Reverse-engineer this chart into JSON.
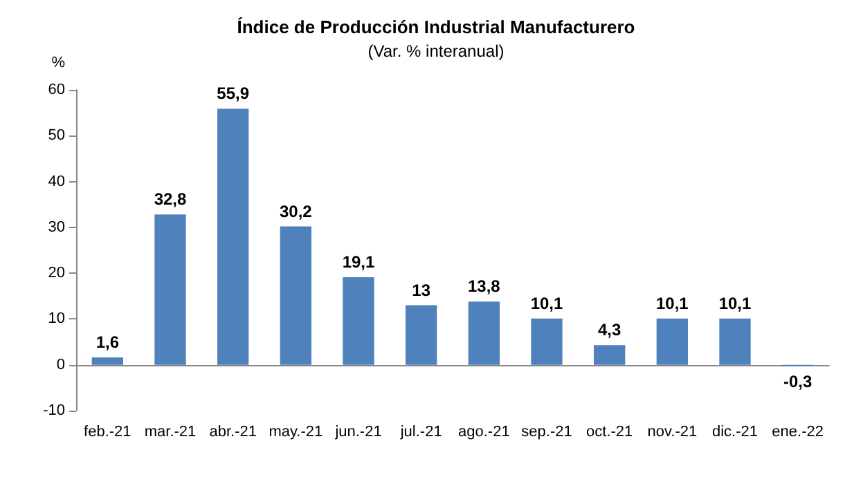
{
  "chart_data": {
    "type": "bar",
    "title": "Índice de Producción Industrial Manufacturero",
    "subtitle": "(Var. % interanual)",
    "ylabel": "%",
    "categories": [
      "feb.-21",
      "mar.-21",
      "abr.-21",
      "may.-21",
      "jun.-21",
      "jul.-21",
      "ago.-21",
      "sep.-21",
      "oct.-21",
      "nov.-21",
      "dic.-21",
      "ene.-22"
    ],
    "values": [
      1.6,
      32.8,
      55.9,
      30.2,
      19.1,
      13,
      13.8,
      10.1,
      4.3,
      10.1,
      10.1,
      -0.3
    ],
    "value_labels": [
      "1,6",
      "32,8",
      "55,9",
      "30,2",
      "19,1",
      "13",
      "13,8",
      "10,1",
      "4,3",
      "10,1",
      "10,1",
      "-0,3"
    ],
    "color": "#4f81bd",
    "ylim": [
      -10,
      60
    ],
    "yticks": [
      -10,
      0,
      10,
      20,
      30,
      40,
      50,
      60
    ]
  }
}
